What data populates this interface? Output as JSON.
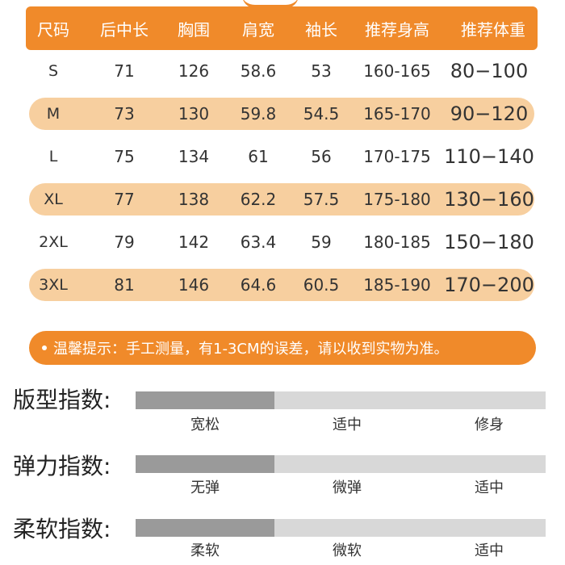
{
  "table": {
    "headers": [
      "尺码",
      "后中长",
      "胸围",
      "肩宽",
      "袖长",
      "推荐身高",
      "推荐体重"
    ],
    "rows": [
      [
        "S",
        "71",
        "126",
        "58.6",
        "53",
        "160-165",
        "80−100"
      ],
      [
        "M",
        "73",
        "130",
        "59.8",
        "54.5",
        "165-170",
        "90−120"
      ],
      [
        "L",
        "75",
        "134",
        "61",
        "56",
        "170-175",
        "110−140"
      ],
      [
        "XL",
        "77",
        "138",
        "62.2",
        "57.5",
        "175-180",
        "130−160"
      ],
      [
        "2XL",
        "79",
        "142",
        "63.4",
        "59",
        "180-185",
        "150−180"
      ],
      [
        "3XL",
        "81",
        "146",
        "64.6",
        "60.5",
        "185-190",
        "170−200"
      ]
    ]
  },
  "tip": {
    "text": "温馨提示：手工测量，有1-3CM的误差，请以收到实物为准。"
  },
  "indices": [
    {
      "label": "版型指数:",
      "ticks": [
        "宽松",
        "适中",
        "修身"
      ],
      "selected_index": 0
    },
    {
      "label": "弹力指数:",
      "ticks": [
        "无弹",
        "微弹",
        "适中"
      ],
      "selected_index": 0
    },
    {
      "label": "柔软指数:",
      "ticks": [
        "柔软",
        "微软",
        "适中"
      ],
      "selected_index": 0
    }
  ],
  "colors": {
    "accent": "#f08a2a",
    "band": "#f7cf9f",
    "bar_track": "#d8d8d8",
    "bar_fill": "#9a9a9a"
  }
}
